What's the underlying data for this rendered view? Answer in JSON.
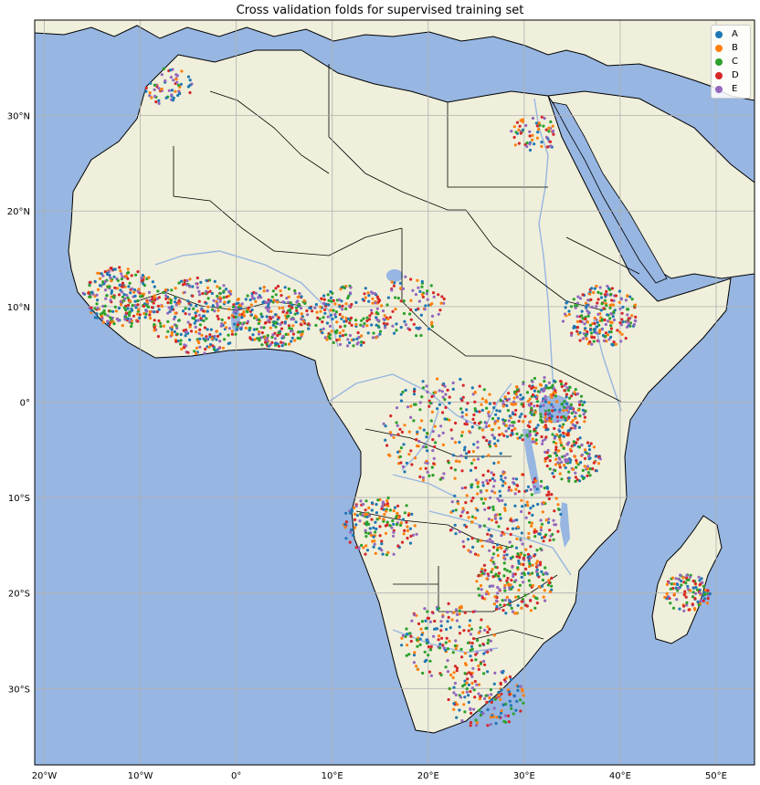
{
  "title": "Cross validation folds for supervised training set",
  "colors": {
    "ocean": "#97b6e1",
    "land": "#efefdb",
    "border": "#000000",
    "river": "#97b6e1",
    "grid": "#b0b0b0"
  },
  "chart_data": {
    "type": "scatter",
    "title": "Cross validation folds for supervised training set",
    "xlim": [
      -21,
      54
    ],
    "ylim": [
      -38,
      40
    ],
    "x_ticks": [
      {
        "value": -20,
        "label": "20°W"
      },
      {
        "value": -10,
        "label": "10°W"
      },
      {
        "value": 0,
        "label": "0°"
      },
      {
        "value": 10,
        "label": "10°E"
      },
      {
        "value": 20,
        "label": "20°E"
      },
      {
        "value": 30,
        "label": "30°E"
      },
      {
        "value": 40,
        "label": "40°E"
      },
      {
        "value": 50,
        "label": "50°E"
      }
    ],
    "y_ticks": [
      {
        "value": 30,
        "label": "30°N"
      },
      {
        "value": 20,
        "label": "20°N"
      },
      {
        "value": 10,
        "label": "10°N"
      },
      {
        "value": 0,
        "label": "0°"
      },
      {
        "value": -10,
        "label": "10°S"
      },
      {
        "value": -20,
        "label": "20°S"
      },
      {
        "value": -30,
        "label": "30°S"
      }
    ],
    "grid": true,
    "legend": {
      "placement": "top-right",
      "entries": [
        {
          "label": "A",
          "color": "#1f77b4"
        },
        {
          "label": "B",
          "color": "#ff7f0e"
        },
        {
          "label": "C",
          "color": "#2ca02c"
        },
        {
          "label": "D",
          "color": "#d62728"
        },
        {
          "label": "E",
          "color": "#9467bd"
        }
      ]
    },
    "clusters": [
      {
        "lon": -12,
        "lat": 11,
        "radius": 4,
        "count": 260
      },
      {
        "lon": -4,
        "lat": 9,
        "radius": 5,
        "count": 300
      },
      {
        "lon": 4,
        "lat": 9,
        "radius": 4,
        "count": 260
      },
      {
        "lon": 12,
        "lat": 9,
        "radius": 4,
        "count": 180
      },
      {
        "lon": -7,
        "lat": 33,
        "radius": 2.5,
        "count": 60
      },
      {
        "lon": 31,
        "lat": 28,
        "radius": 2.5,
        "count": 60
      },
      {
        "lon": 38,
        "lat": 9,
        "radius": 4,
        "count": 220
      },
      {
        "lon": 32,
        "lat": -1,
        "radius": 4.5,
        "count": 300
      },
      {
        "lon": 22,
        "lat": -3,
        "radius": 7,
        "count": 260
      },
      {
        "lon": 28,
        "lat": -12,
        "radius": 6,
        "count": 260
      },
      {
        "lon": 15,
        "lat": -13,
        "radius": 4,
        "count": 160
      },
      {
        "lon": 29,
        "lat": -19,
        "radius": 4,
        "count": 200
      },
      {
        "lon": 22,
        "lat": -25,
        "radius": 5,
        "count": 180
      },
      {
        "lon": 26,
        "lat": -31,
        "radius": 4,
        "count": 140
      },
      {
        "lon": 47,
        "lat": -20,
        "radius": 2.5,
        "count": 110
      },
      {
        "lon": 18,
        "lat": 10,
        "radius": 4,
        "count": 90
      },
      {
        "lon": 35,
        "lat": -6,
        "radius": 3,
        "count": 130
      }
    ]
  }
}
